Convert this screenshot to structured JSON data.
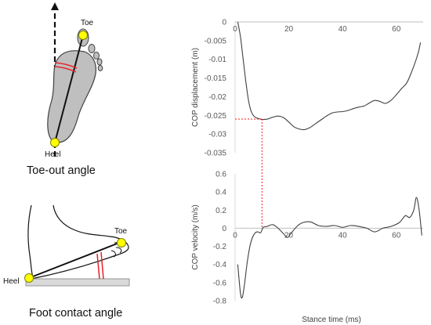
{
  "left_panel": {
    "toe_out": {
      "caption": "Toe-out angle",
      "toe_label": "Toe",
      "heel_label": "Heel"
    },
    "contact": {
      "caption": "Foot contact angle",
      "toe_label": "Toe",
      "heel_label": "Heel"
    }
  },
  "colors": {
    "line": "#404040",
    "foot_fill": "#bfbfbf",
    "marker": "#ffff00",
    "angle_mark": "#e8212a",
    "ground": "#d9d9d9",
    "guide": "#ff0000"
  },
  "chart_data": [
    {
      "type": "line",
      "title": "",
      "xlabel": "",
      "ylabel": "COP displacement (m)",
      "xlim": [
        0,
        70
      ],
      "ylim": [
        -0.035,
        0
      ],
      "xticks": [
        0,
        20,
        40,
        60
      ],
      "yticks": [
        0,
        -0.005,
        -0.01,
        -0.015,
        -0.02,
        -0.025,
        -0.03,
        -0.035
      ],
      "ytick_labels": [
        "0",
        "-0.005",
        "-0.01",
        "-0.015",
        "-0.02",
        "-0.025",
        "-0.03",
        "-0.035"
      ],
      "xtick_labels": [
        "0",
        "20",
        "40",
        "60"
      ],
      "series": [
        {
          "x": [
            1,
            2,
            3,
            4,
            5,
            6,
            7,
            8,
            9,
            10,
            12,
            14,
            16,
            18,
            20,
            22,
            24,
            26,
            28,
            30,
            32,
            34,
            36,
            38,
            40,
            42,
            44,
            46,
            48,
            50,
            52,
            54,
            56,
            58,
            60,
            62,
            64,
            66,
            68,
            69
          ],
          "y": [
            0.0,
            -0.004,
            -0.01,
            -0.016,
            -0.021,
            -0.024,
            -0.0252,
            -0.0257,
            -0.0259,
            -0.0261,
            -0.026,
            -0.0255,
            -0.0252,
            -0.0256,
            -0.0268,
            -0.0281,
            -0.0287,
            -0.0288,
            -0.0282,
            -0.0272,
            -0.0262,
            -0.0252,
            -0.0244,
            -0.0241,
            -0.024,
            -0.0237,
            -0.0232,
            -0.0228,
            -0.0225,
            -0.0217,
            -0.021,
            -0.0213,
            -0.0218,
            -0.021,
            -0.0195,
            -0.0178,
            -0.0162,
            -0.0128,
            -0.0087,
            -0.0055
          ]
        }
      ]
    },
    {
      "type": "line",
      "title": "",
      "xlabel": "Stance time (ms)",
      "ylabel": "COP velocity (m/s)",
      "xlim": [
        0,
        70
      ],
      "ylim": [
        -0.8,
        0.6
      ],
      "xticks": [
        0,
        20,
        40,
        60
      ],
      "yticks": [
        0.6,
        0.4,
        0.2,
        0,
        -0.2,
        -0.4,
        -0.6,
        -0.8
      ],
      "ytick_labels": [
        "0.6",
        "0.4",
        "0.2",
        "0",
        "-0.2",
        "-0.4",
        "-0.6",
        "-0.8"
      ],
      "xtick_labels": [
        "0",
        "20",
        "40",
        "60"
      ],
      "series": [
        {
          "x": [
            1,
            2,
            2.7,
            3.5,
            4.5,
            5.5,
            6.5,
            7.5,
            8.5,
            9.5,
            10.5,
            12,
            14,
            16,
            18,
            19.5,
            21,
            23,
            25,
            28,
            31,
            34,
            37,
            40,
            43,
            46,
            49,
            52,
            55,
            58,
            61,
            62.5,
            63.5,
            65,
            66.5,
            67.5,
            68.5,
            69.5
          ],
          "y": [
            -0.4,
            -0.72,
            -0.76,
            -0.62,
            -0.38,
            -0.2,
            -0.1,
            -0.05,
            -0.04,
            -0.05,
            0.01,
            0.02,
            0.04,
            0.0,
            -0.06,
            -0.1,
            -0.05,
            0.02,
            0.06,
            0.07,
            0.03,
            0.02,
            0.03,
            0.01,
            0.03,
            0.02,
            0.0,
            -0.04,
            0.0,
            0.02,
            0.06,
            0.11,
            0.14,
            0.12,
            0.2,
            0.34,
            0.2,
            -0.08
          ]
        }
      ]
    }
  ],
  "guide": {
    "x": 10,
    "y": -0.026
  }
}
